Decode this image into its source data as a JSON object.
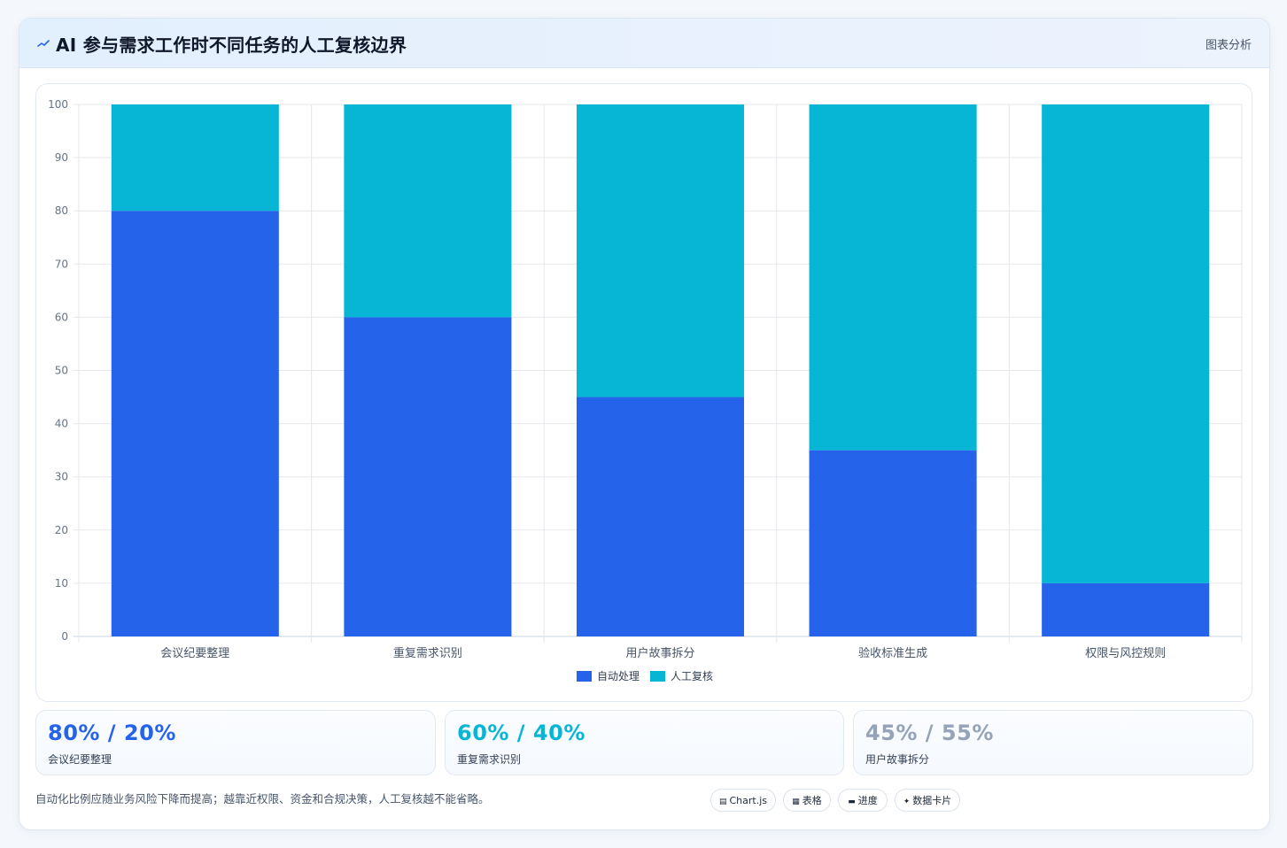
{
  "header": {
    "title": "AI 参与需求工作时不同任务的人工复核边界",
    "tag": "图表分析",
    "icon": "chart-line-icon"
  },
  "chart_data": {
    "type": "bar",
    "stacked": true,
    "categories": [
      "会议纪要整理",
      "重复需求识别",
      "用户故事拆分",
      "验收标准生成",
      "权限与风控规则"
    ],
    "series": [
      {
        "name": "自动处理",
        "values": [
          80,
          60,
          45,
          35,
          10
        ],
        "color": "#2563eb"
      },
      {
        "name": "人工复核",
        "values": [
          20,
          40,
          55,
          65,
          90
        ],
        "color": "#06b6d4"
      }
    ],
    "ylim": [
      0,
      100
    ],
    "yticks": [
      0,
      10,
      20,
      30,
      40,
      50,
      60,
      70,
      80,
      90,
      100
    ],
    "grid": true,
    "legend": "bottom"
  },
  "stats": [
    {
      "value": "80% / 20%",
      "label": "会议纪要整理",
      "color": "#2563eb"
    },
    {
      "value": "60% / 40%",
      "label": "重复需求识别",
      "color": "#06b6d4"
    },
    {
      "value": "45% / 55%",
      "label": "用户故事拆分",
      "color": "#94a3b8"
    }
  ],
  "footnote": "自动化比例应随业务风险下降而提高；越靠近权限、资金和合规决策，人工复核越不能省略。",
  "pills": [
    {
      "label": "Chart.js",
      "icon": "chart-icon",
      "glyph": "▤"
    },
    {
      "label": "表格",
      "icon": "table-icon",
      "glyph": "▦"
    },
    {
      "label": "进度",
      "icon": "progress-icon",
      "glyph": "▬"
    },
    {
      "label": "数据卡片",
      "icon": "sparkle-icon",
      "glyph": "✦"
    }
  ]
}
